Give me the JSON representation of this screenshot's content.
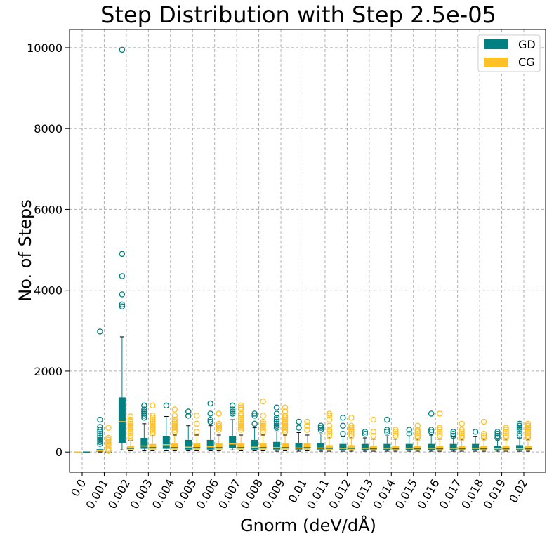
{
  "chart_data": {
    "type": "box",
    "title": "Step Distribution with Step 2.5e-05",
    "xlabel": "Gnorm (deV/dÅ)",
    "ylabel": "No. of Steps",
    "ylim": [
      -500,
      10450
    ],
    "yticks": [
      0,
      2000,
      4000,
      6000,
      8000,
      10000
    ],
    "grid": true,
    "legend_position": "top-right",
    "categories": [
      "0.0",
      "0.001",
      "0.002",
      "0.003",
      "0.004",
      "0.005",
      "0.006",
      "0.007",
      "0.008",
      "0.009",
      "0.01",
      "0.011",
      "0.012",
      "0.013",
      "0.014",
      "0.015",
      "0.016",
      "0.017",
      "0.018",
      "0.019",
      "0.02"
    ],
    "series": [
      {
        "name": "GD",
        "color": "#008080",
        "boxes": [
          {
            "whislo": 0,
            "q1": 0,
            "med": 0,
            "q3": 0,
            "whishi": 0,
            "fliers": []
          },
          {
            "whislo": 0,
            "q1": 10,
            "med": 30,
            "q3": 70,
            "whishi": 150,
            "fliers": [
              200,
              250,
              300,
              350,
              400,
              450,
              500,
              550,
              620,
              800,
              2980
            ]
          },
          {
            "whislo": 50,
            "q1": 220,
            "med": 750,
            "q3": 1350,
            "whishi": 2850,
            "fliers": [
              3600,
              3650,
              3900,
              4350,
              4900,
              9950
            ]
          },
          {
            "whislo": 30,
            "q1": 80,
            "med": 150,
            "q3": 350,
            "whishi": 700,
            "fliers": [
              850,
              900,
              950,
              1000,
              1050,
              1150
            ]
          },
          {
            "whislo": 30,
            "q1": 80,
            "med": 180,
            "q3": 400,
            "whishi": 880,
            "fliers": [
              1150
            ]
          },
          {
            "whislo": 30,
            "q1": 60,
            "med": 120,
            "q3": 300,
            "whishi": 650,
            "fliers": [
              900,
              1000
            ]
          },
          {
            "whislo": 30,
            "q1": 60,
            "med": 130,
            "q3": 300,
            "whishi": 650,
            "fliers": [
              750,
              800,
              950,
              1200
            ]
          },
          {
            "whislo": 50,
            "q1": 100,
            "med": 200,
            "q3": 400,
            "whishi": 800,
            "fliers": [
              950,
              1000,
              1050,
              1150
            ]
          },
          {
            "whislo": 30,
            "q1": 60,
            "med": 120,
            "q3": 300,
            "whishi": 600,
            "fliers": [
              700,
              900,
              950
            ]
          },
          {
            "whislo": 20,
            "q1": 60,
            "med": 110,
            "q3": 250,
            "whishi": 500,
            "fliers": [
              600,
              650,
              700,
              750,
              800,
              850,
              950,
              1100
            ]
          },
          {
            "whislo": 20,
            "q1": 60,
            "med": 100,
            "q3": 230,
            "whishi": 480,
            "fliers": [
              600,
              750
            ]
          },
          {
            "whislo": 20,
            "q1": 60,
            "med": 100,
            "q3": 220,
            "whishi": 450,
            "fliers": [
              550,
              600,
              650
            ]
          },
          {
            "whislo": 20,
            "q1": 50,
            "med": 90,
            "q3": 200,
            "whishi": 380,
            "fliers": [
              450,
              650,
              850
            ]
          },
          {
            "whislo": 20,
            "q1": 50,
            "med": 90,
            "q3": 200,
            "whishi": 350,
            "fliers": [
              450,
              500
            ]
          },
          {
            "whislo": 20,
            "q1": 50,
            "med": 90,
            "q3": 200,
            "whishi": 400,
            "fliers": [
              500,
              550,
              800
            ]
          },
          {
            "whislo": 20,
            "q1": 50,
            "med": 90,
            "q3": 200,
            "whishi": 400,
            "fliers": [
              450,
              550
            ]
          },
          {
            "whislo": 20,
            "q1": 50,
            "med": 90,
            "q3": 200,
            "whishi": 420,
            "fliers": [
              500,
              550,
              950
            ]
          },
          {
            "whislo": 20,
            "q1": 50,
            "med": 90,
            "q3": 200,
            "whishi": 380,
            "fliers": [
              400,
              450,
              500
            ]
          },
          {
            "whislo": 20,
            "q1": 50,
            "med": 90,
            "q3": 200,
            "whishi": 380,
            "fliers": [
              500
            ]
          },
          {
            "whislo": 20,
            "q1": 50,
            "med": 80,
            "q3": 150,
            "whishi": 300,
            "fliers": [
              350,
              400,
              450,
              500
            ]
          },
          {
            "whislo": 20,
            "q1": 50,
            "med": 80,
            "q3": 170,
            "whishi": 350,
            "fliers": [
              400,
              450,
              550,
              600,
              650,
              700
            ]
          }
        ]
      },
      {
        "name": "CG",
        "color": "#FFC125",
        "boxes": [
          {
            "whislo": 0,
            "q1": 0,
            "med": 0,
            "q3": 0,
            "whishi": 0,
            "fliers": []
          },
          {
            "whislo": 0,
            "q1": 0,
            "med": 0,
            "q3": 0,
            "whishi": 0,
            "fliers": [
              30,
              60,
              100,
              150,
              200,
              250,
              300,
              350,
              600
            ]
          },
          {
            "whislo": 30,
            "q1": 60,
            "med": 90,
            "q3": 150,
            "whishi": 280,
            "fliers": [
              350,
              400,
              450,
              500,
              550,
              600,
              650,
              700,
              750,
              800,
              880
            ]
          },
          {
            "whislo": 30,
            "q1": 60,
            "med": 110,
            "q3": 200,
            "whishi": 400,
            "fliers": [
              450,
              500,
              550,
              600,
              650,
              700,
              750,
              800,
              850,
              900,
              1150
            ]
          },
          {
            "whislo": 30,
            "q1": 60,
            "med": 110,
            "q3": 210,
            "whishi": 420,
            "fliers": [
              500,
              550,
              600,
              650,
              700,
              750,
              800,
              900,
              1050
            ]
          },
          {
            "whislo": 30,
            "q1": 60,
            "med": 110,
            "q3": 210,
            "whishi": 420,
            "fliers": [
              500,
              700,
              900
            ]
          },
          {
            "whislo": 30,
            "q1": 60,
            "med": 110,
            "q3": 210,
            "whishi": 420,
            "fliers": [
              550,
              600,
              650,
              700,
              950
            ]
          },
          {
            "whislo": 30,
            "q1": 60,
            "med": 110,
            "q3": 210,
            "whishi": 420,
            "fliers": [
              550,
              600,
              650,
              700,
              750,
              800,
              850,
              900,
              950,
              1050,
              1100,
              1150
            ]
          },
          {
            "whislo": 30,
            "q1": 60,
            "med": 110,
            "q3": 210,
            "whishi": 420,
            "fliers": [
              500,
              550,
              600,
              650,
              700,
              750,
              900,
              1250
            ]
          },
          {
            "whislo": 30,
            "q1": 60,
            "med": 110,
            "q3": 210,
            "whishi": 420,
            "fliers": [
              500,
              550,
              600,
              650,
              700,
              750,
              800,
              850,
              900,
              1000,
              1100
            ]
          },
          {
            "whislo": 30,
            "q1": 60,
            "med": 110,
            "q3": 210,
            "whishi": 420,
            "fliers": [
              550,
              650,
              750
            ]
          },
          {
            "whislo": 20,
            "q1": 50,
            "med": 90,
            "q3": 170,
            "whishi": 350,
            "fliers": [
              400,
              450,
              500,
              550,
              650,
              800,
              900,
              950
            ]
          },
          {
            "whislo": 20,
            "q1": 50,
            "med": 90,
            "q3": 170,
            "whishi": 350,
            "fliers": [
              400,
              450,
              500,
              550,
              600,
              650,
              850
            ]
          },
          {
            "whislo": 20,
            "q1": 50,
            "med": 80,
            "q3": 160,
            "whishi": 320,
            "fliers": [
              400,
              500,
              800
            ]
          },
          {
            "whislo": 20,
            "q1": 50,
            "med": 80,
            "q3": 160,
            "whishi": 320,
            "fliers": [
              400,
              450,
              500,
              550
            ]
          },
          {
            "whislo": 20,
            "q1": 50,
            "med": 80,
            "q3": 150,
            "whishi": 300,
            "fliers": [
              350,
              400,
              450,
              500,
              550,
              650
            ]
          },
          {
            "whislo": 20,
            "q1": 50,
            "med": 80,
            "q3": 160,
            "whishi": 320,
            "fliers": [
              400,
              450,
              500,
              550,
              600,
              950
            ]
          },
          {
            "whislo": 20,
            "q1": 50,
            "med": 80,
            "q3": 150,
            "whishi": 300,
            "fliers": [
              350,
              400,
              450,
              500,
              550,
              700
            ]
          },
          {
            "whislo": 20,
            "q1": 50,
            "med": 80,
            "q3": 150,
            "whishi": 300,
            "fliers": [
              350,
              400,
              450,
              750
            ]
          },
          {
            "whislo": 20,
            "q1": 50,
            "med": 80,
            "q3": 150,
            "whishi": 300,
            "fliers": [
              350,
              400,
              450,
              500,
              550,
              600
            ]
          },
          {
            "whislo": 20,
            "q1": 50,
            "med": 80,
            "q3": 150,
            "whishi": 300,
            "fliers": [
              350,
              400,
              450,
              500,
              550,
              600,
              650,
              700
            ]
          }
        ]
      }
    ]
  }
}
